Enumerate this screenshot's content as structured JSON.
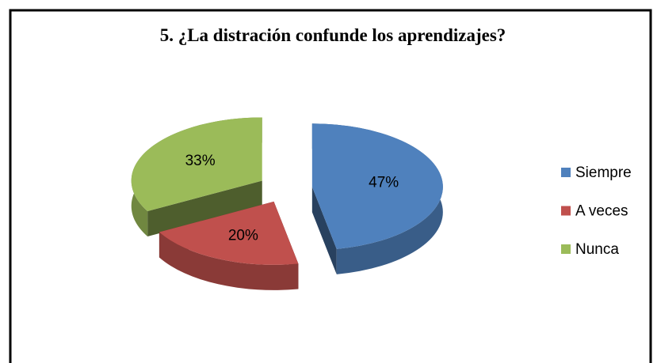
{
  "chart_data": {
    "type": "pie",
    "title": "5. ¿La distración confunde los aprendizajes?",
    "categories": [
      "Siempre",
      "A veces",
      "Nunca"
    ],
    "values": [
      47,
      20,
      33
    ],
    "value_labels": [
      "47%",
      "20%",
      "33%"
    ],
    "colors": [
      "#4f81bd",
      "#c0504d",
      "#9bbb59"
    ],
    "legend": "right"
  }
}
